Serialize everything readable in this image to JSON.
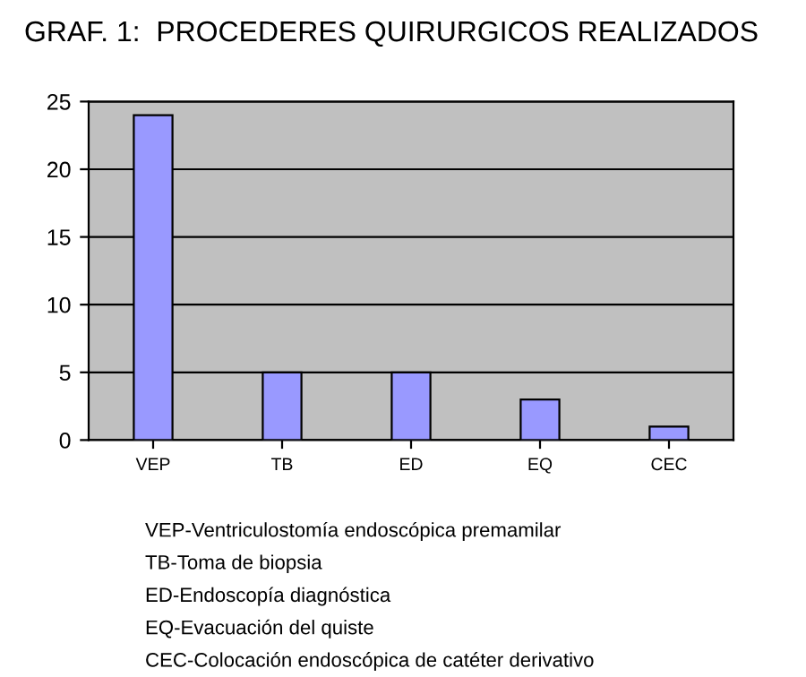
{
  "chart_data": {
    "type": "bar",
    "title": "GRAF. 1:  PROCEDERES QUIRURGICOS REALIZADOS",
    "categories": [
      "VEP",
      "TB",
      "ED",
      "EQ",
      "CEC"
    ],
    "values": [
      24,
      5,
      5,
      3,
      1
    ],
    "color": "#9999ff",
    "ylim": [
      0,
      25
    ],
    "yticks": [
      0,
      5,
      10,
      15,
      20,
      25
    ],
    "grid": "y",
    "annotations": [
      "VEP-Ventriculostomía endoscópica premamilar",
      "TB-Toma de biopsia",
      "ED-Endoscopía diagnóstica",
      "EQ-Evacuación del quiste",
      "CEC-Colocación endoscópica de catéter derivativo"
    ]
  }
}
